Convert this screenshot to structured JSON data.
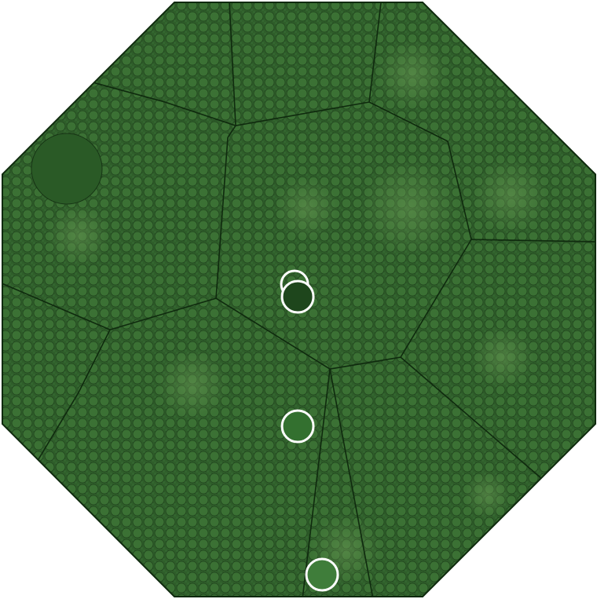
{
  "colors": {
    "field": "#2f5e2a",
    "cell": "#3d7436",
    "edge": "#0f2a0e",
    "markers": [
      "#1e461c",
      "#33702f",
      "#3f7d3a"
    ]
  }
}
